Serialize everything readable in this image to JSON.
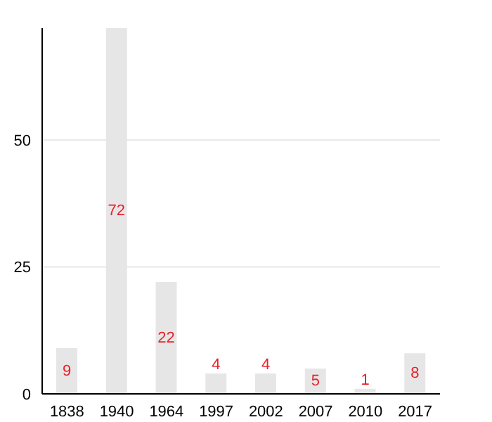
{
  "chart_data": {
    "type": "bar",
    "categories": [
      "1838",
      "1940",
      "1964",
      "1997",
      "2002",
      "2007",
      "2010",
      "2017"
    ],
    "values": [
      9,
      72,
      22,
      4,
      4,
      5,
      1,
      8
    ],
    "color": "#e6e6e6",
    "ylim": [
      0,
      72
    ],
    "yticks": [
      0,
      25,
      50
    ],
    "grid": "y",
    "data_labels": true
  }
}
